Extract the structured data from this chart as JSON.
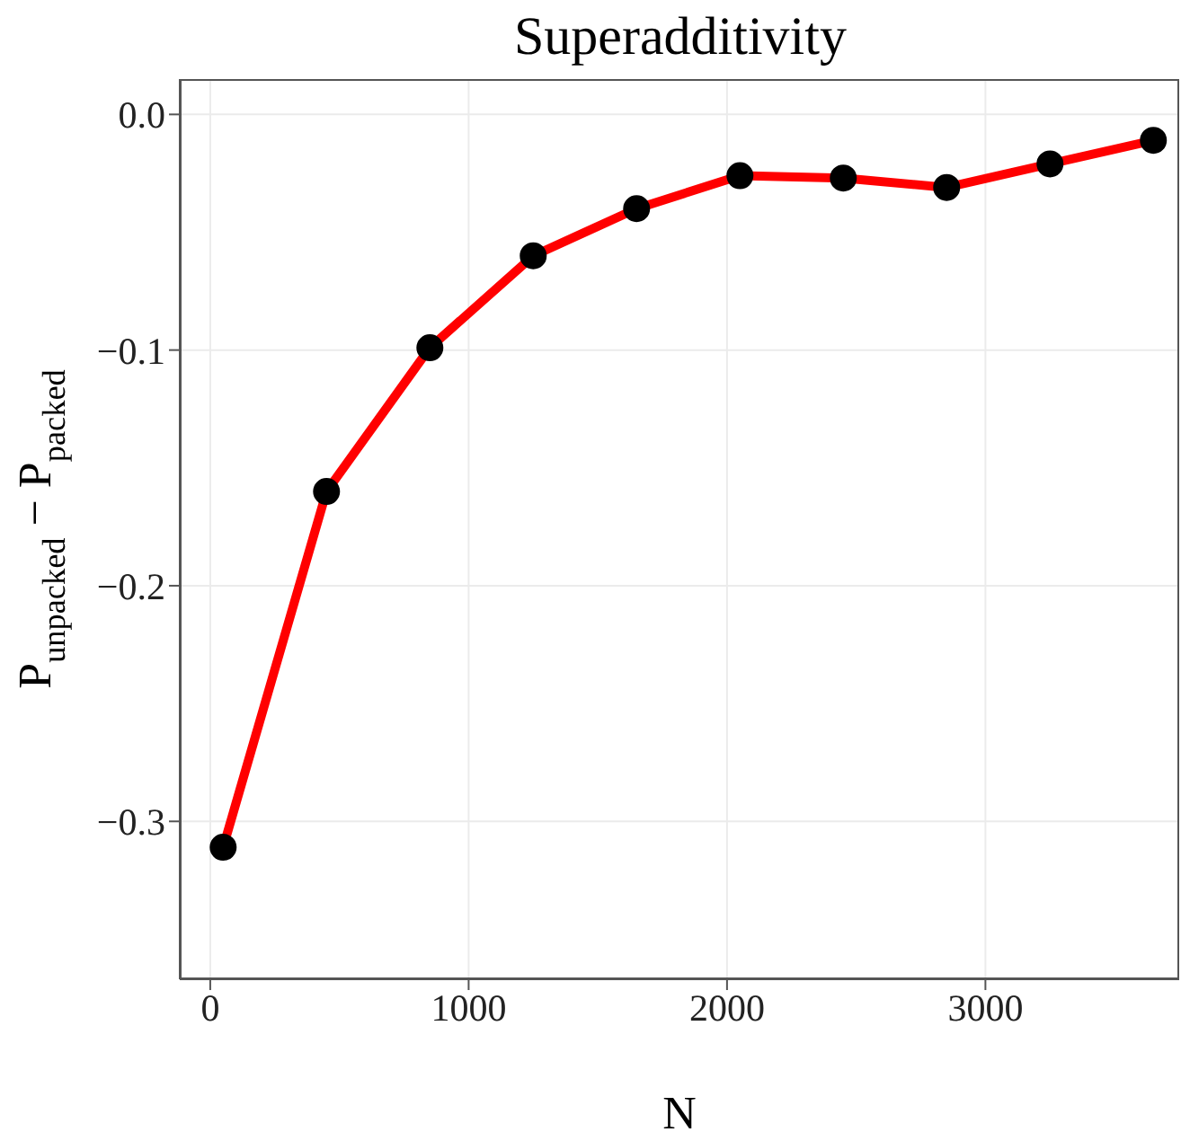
{
  "chart_data": {
    "type": "line",
    "title": "Superadditivity",
    "xlabel": "N",
    "ylabel": "P$_{unpacked}$ − P$_{packed}$",
    "x": [
      50,
      450,
      850,
      1250,
      1650,
      2050,
      2450,
      2850,
      3250,
      3650
    ],
    "series": [
      {
        "color": "#ff0000",
        "values": [
          -0.311,
          -0.16,
          -0.099,
          -0.06,
          -0.04,
          -0.026,
          -0.027,
          -0.031,
          -0.021,
          -0.011
        ]
      }
    ],
    "xlim": [
      -118,
      3750
    ],
    "xticks": [
      0,
      1000,
      2000,
      3000
    ],
    "ylim": [
      -0.367,
      0.015
    ],
    "yticks": [
      {
        "value": 0,
        "label": "0.0"
      },
      {
        "value": -0.1,
        "label": "−0.1"
      },
      {
        "value": -0.2,
        "label": "−0.2"
      },
      {
        "value": -0.3,
        "label": "−0.3"
      }
    ],
    "grid": true,
    "marker": "circle",
    "line_style": "solid"
  }
}
